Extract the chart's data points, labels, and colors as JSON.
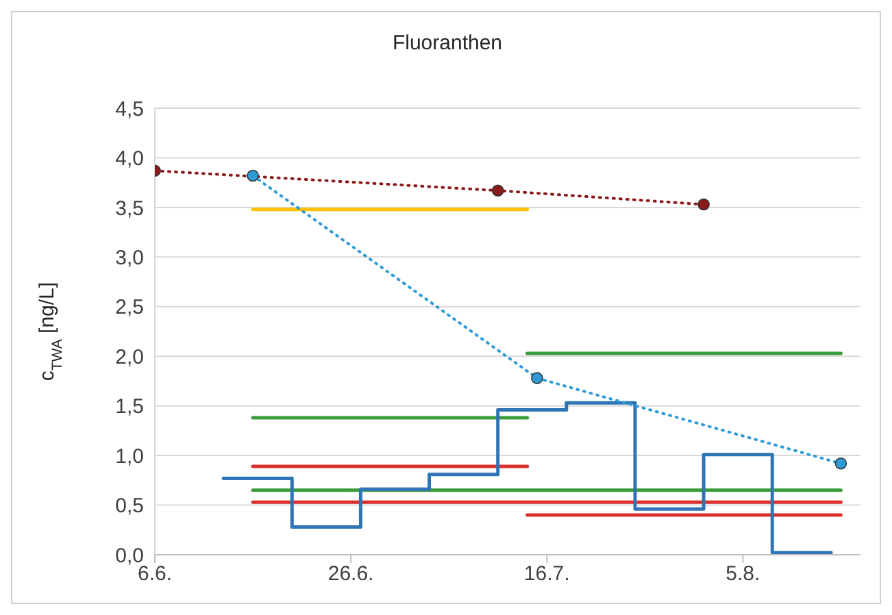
{
  "chart_data": {
    "type": "line",
    "title": "Fluoranthen",
    "ylabel": "c$_{TWA}$ [ng/L]",
    "xlim": [
      "--06-06",
      "--08-17"
    ],
    "xticks": [
      {
        "value": "--06-06",
        "label": "6.6."
      },
      {
        "value": "--06-26",
        "label": "26.6."
      },
      {
        "value": "--07-16",
        "label": "16.7."
      },
      {
        "value": "--08-05",
        "label": "5.8."
      }
    ],
    "ylim": [
      0,
      4.5
    ],
    "yticks": [
      {
        "value": 0,
        "label": "0,0"
      },
      {
        "value": 0.5,
        "label": "0,5"
      },
      {
        "value": 1,
        "label": "1,0"
      },
      {
        "value": 1.5,
        "label": "1,5"
      },
      {
        "value": 2,
        "label": "2,0"
      },
      {
        "value": 2.5,
        "label": "2,5"
      },
      {
        "value": 3,
        "label": "3,0"
      },
      {
        "value": 3.5,
        "label": "3,5"
      },
      {
        "value": 4,
        "label": "4,0"
      },
      {
        "value": 4.5,
        "label": "4,5"
      }
    ],
    "grid": "y",
    "series": [
      {
        "color": "#ffc000",
        "line_style": "solid",
        "marker": "none",
        "x": [
          "--06-16",
          "--07-14"
        ],
        "values": [
          3.48,
          3.48
        ]
      },
      {
        "color": "#3a9b3a",
        "line_style": "solid",
        "marker": "none",
        "x": [
          "--07-14",
          "--08-15"
        ],
        "values": [
          2.03,
          2.03
        ]
      },
      {
        "color": "#3a9b3a",
        "line_style": "solid",
        "marker": "none",
        "x": [
          "--06-16",
          "--07-14"
        ],
        "values": [
          1.38,
          1.38
        ]
      },
      {
        "color": "#d9302c",
        "line_style": "solid",
        "marker": "none",
        "x": [
          "--06-16",
          "--07-14"
        ],
        "values": [
          0.89,
          0.89
        ]
      },
      {
        "color": "#3a9b3a",
        "line_style": "solid",
        "marker": "none",
        "x": [
          "--06-16",
          "--08-15"
        ],
        "values": [
          0.65,
          0.65
        ]
      },
      {
        "color": "#d9302c",
        "line_style": "solid",
        "marker": "none",
        "x": [
          "--06-16",
          "--08-15"
        ],
        "values": [
          0.53,
          0.53
        ]
      },
      {
        "color": "#d9302c",
        "line_style": "solid",
        "marker": "none",
        "x": [
          "--07-14",
          "--08-15"
        ],
        "values": [
          0.4,
          0.4
        ]
      },
      {
        "type": "step",
        "color": "#2f75b5",
        "line_style": "solid",
        "marker": "none",
        "x": [
          "--06-13",
          "--06-20",
          "--06-27",
          "--07-04",
          "--07-11",
          "--07-18",
          "--07-25",
          "--08-01",
          "--08-08",
          "--08-14"
        ],
        "values": [
          0.77,
          0.28,
          0.66,
          0.81,
          1.46,
          1.53,
          0.46,
          1.01,
          0.02,
          0.02
        ]
      },
      {
        "color": "#2e9bd6",
        "line_style": "dotted",
        "marker": "circle",
        "x": [
          "--06-16",
          "--07-15",
          "--08-15"
        ],
        "values": [
          3.82,
          1.78,
          0.92
        ]
      },
      {
        "color": "#8b1a1a",
        "line_style": "dotted",
        "marker": "circle",
        "x": [
          "--06-06",
          "--07-11",
          "--08-01"
        ],
        "values": [
          3.87,
          3.67,
          3.53
        ]
      }
    ]
  }
}
